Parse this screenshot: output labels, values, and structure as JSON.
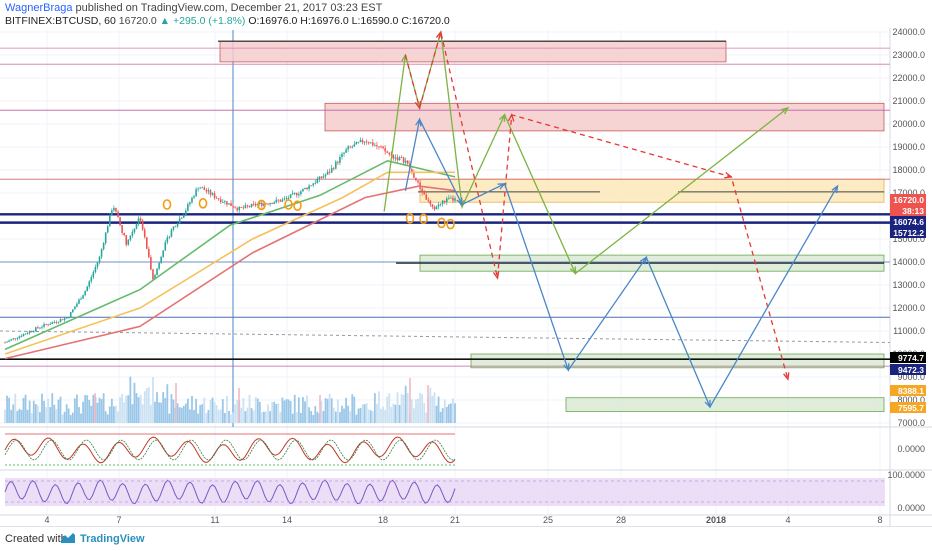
{
  "header": {
    "author": "WagnerBraga",
    "published_text": "published on TradingView.com, December 21, 2017 03:23 EST",
    "symbol": "BITFINEX:BTCUSD, 60",
    "last": "16720.0",
    "change": "+295.0 (+1.8%)",
    "open": "O:16976.0",
    "high": "H:16976.0",
    "low": "L:16590.0",
    "close": "C:16720.0"
  },
  "footer": {
    "created_with": "Created with",
    "brand": "TradingView"
  },
  "colors": {
    "candle_up": "#26a69a",
    "candle_down": "#ef5350",
    "ema_fast": "#66bb6a",
    "ema_mid": "#f5c15c",
    "ema_slow": "#e57373",
    "projection_green": "#7cb342",
    "projection_blue": "#4a86c8",
    "projection_red": "#e53935",
    "support_blue": "#1a237e",
    "resistance_zone": "#f4cccc",
    "support_zone": "#d9ead3",
    "highlight_zone": "#fde8b8"
  },
  "chart_data": {
    "type": "candlestick",
    "title": "BITFINEX:BTCUSD, 60",
    "x_axis": {
      "tick_labels": [
        "4",
        "7",
        "11",
        "14",
        "18",
        "21",
        "25",
        "28",
        "2018",
        "4",
        "8"
      ]
    },
    "y_axis": {
      "tick_labels": [
        "24000.0",
        "23000.0",
        "22000.0",
        "21000.0",
        "20000.0",
        "19000.0",
        "18000.0",
        "17000.0",
        "15000.0",
        "14000.0",
        "13000.0",
        "12000.0",
        "11000.0",
        "10000.0",
        "9000.0",
        "8000.0",
        "7000.0"
      ],
      "ylim": [
        7000,
        24000
      ]
    },
    "price_path": [
      [
        0,
        10500
      ],
      [
        8,
        11200
      ],
      [
        14,
        11600
      ],
      [
        18,
        12800
      ],
      [
        21,
        14200
      ],
      [
        24,
        16500
      ],
      [
        27,
        14800
      ],
      [
        30,
        16000
      ],
      [
        33,
        13200
      ],
      [
        35,
        14500
      ],
      [
        37,
        15400
      ],
      [
        40,
        16200
      ],
      [
        43,
        17300
      ],
      [
        47,
        16800
      ],
      [
        52,
        16300
      ],
      [
        56,
        16500
      ],
      [
        62,
        16700
      ],
      [
        66,
        17100
      ],
      [
        72,
        17900
      ],
      [
        76,
        18900
      ],
      [
        80,
        19300
      ],
      [
        83,
        19000
      ],
      [
        86,
        18600
      ],
      [
        89,
        18400
      ],
      [
        92,
        17300
      ],
      [
        95,
        16300
      ],
      [
        98,
        16700
      ],
      [
        100,
        16720
      ]
    ],
    "moving_averages": [
      {
        "name": "",
        "points": [
          [
            0,
            10200
          ],
          [
            30,
            12800
          ],
          [
            50,
            15600
          ],
          [
            70,
            16900
          ],
          [
            85,
            18400
          ],
          [
            100,
            17700
          ]
        ]
      },
      {
        "name": "",
        "points": [
          [
            0,
            10000
          ],
          [
            30,
            12000
          ],
          [
            55,
            15000
          ],
          [
            75,
            16800
          ],
          [
            85,
            17900
          ],
          [
            100,
            17900
          ]
        ]
      },
      {
        "name": "",
        "points": [
          [
            0,
            9800
          ],
          [
            30,
            11200
          ],
          [
            55,
            14400
          ],
          [
            80,
            16800
          ],
          [
            92,
            17300
          ],
          [
            100,
            17100
          ]
        ]
      }
    ],
    "price_labels": [
      {
        "value": "16720.0",
        "color": "#ef5350"
      },
      {
        "value": "38:13",
        "color": "#ef5350"
      },
      {
        "value": "16074.6",
        "color": "#1a237e"
      },
      {
        "value": "15712.2",
        "color": "#1a237e"
      },
      {
        "value": "9774.7",
        "color": "#000000"
      },
      {
        "value": "9472.3",
        "color": "#1a237e"
      },
      {
        "value": "8388.1",
        "color": "#f5a623"
      },
      {
        "value": "7595.7",
        "color": "#f5a623"
      }
    ],
    "zones": [
      {
        "kind": "resistance",
        "from": 22700,
        "to": 23600
      },
      {
        "kind": "resistance",
        "from": 19700,
        "to": 20900
      },
      {
        "kind": "highlight",
        "from": 16600,
        "to": 17600
      },
      {
        "kind": "support",
        "from": 13600,
        "to": 14300
      },
      {
        "kind": "support",
        "from": 9400,
        "to": 10000
      },
      {
        "kind": "support",
        "from": 7500,
        "to": 8100
      }
    ],
    "horizontal_levels": [
      23300,
      22600,
      20600,
      17600,
      16074.6,
      15712.2,
      14000,
      11600,
      9774.7,
      9472.3
    ],
    "projections": {
      "green": [
        [
          1,
          16200
        ],
        [
          4,
          23000
        ],
        [
          6,
          20700
        ],
        [
          9,
          24000
        ],
        [
          12,
          16400
        ],
        [
          18,
          20400
        ],
        [
          28,
          13500
        ],
        [
          58,
          20700
        ]
      ],
      "red_dashed": [
        [
          4,
          23000
        ],
        [
          6,
          20700
        ],
        [
          9,
          24000
        ],
        [
          17,
          13300
        ],
        [
          19,
          20400
        ],
        [
          50,
          17700
        ],
        [
          58,
          8900
        ]
      ],
      "blue": [
        [
          4,
          17100
        ],
        [
          6,
          20200
        ],
        [
          12,
          16500
        ],
        [
          18,
          17400
        ],
        [
          27,
          9300
        ],
        [
          38,
          14200
        ],
        [
          47,
          7700
        ],
        [
          65,
          17300
        ]
      ]
    },
    "indicators": [
      {
        "name": "",
        "type": "oscillator",
        "tick_labels": [
          "0.0000"
        ]
      },
      {
        "name": "",
        "type": "rsi",
        "tick_labels": [
          "100.0000",
          "0.0000"
        ]
      }
    ]
  }
}
